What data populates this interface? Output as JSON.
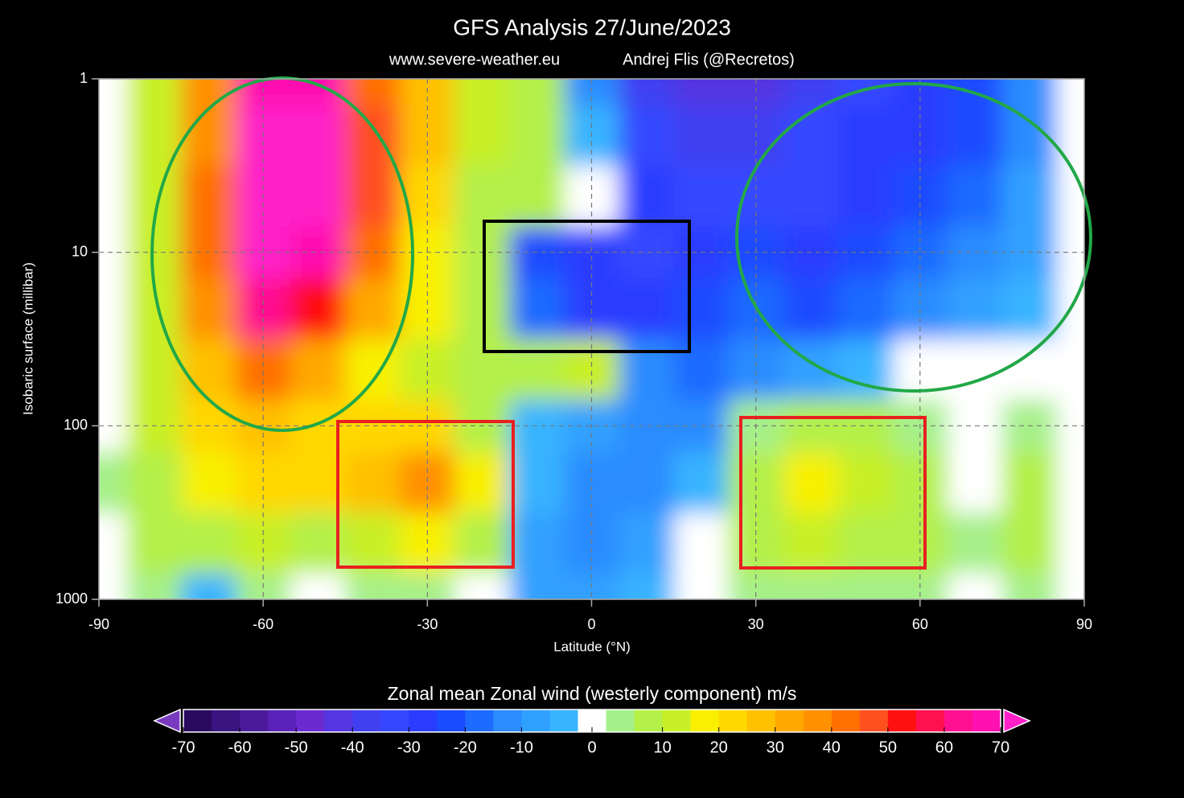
{
  "chart_data": {
    "type": "contour",
    "title": "GFS Analysis  27/June/2023",
    "subtitle": "www.severe-weather.eu",
    "credit": "Andrej Flis (@Recretos)",
    "x_label": "Latitude (°N)",
    "y_label": "Isobaric surface (millibar)",
    "x": [
      -90,
      -80,
      -70,
      -60,
      -50,
      -40,
      -30,
      -20,
      -10,
      0,
      10,
      20,
      30,
      40,
      50,
      60,
      70,
      80,
      90
    ],
    "y": [
      1,
      2,
      5,
      10,
      20,
      50,
      100,
      200,
      500,
      1000
    ],
    "z": [
      [
        0,
        15,
        40,
        70,
        70,
        45,
        30,
        15,
        10,
        -10,
        -35,
        -40,
        -40,
        -35,
        -30,
        -25,
        -20,
        -10,
        0
      ],
      [
        0,
        15,
        40,
        75,
        75,
        50,
        30,
        15,
        8,
        -2,
        -30,
        -35,
        -35,
        -30,
        -25,
        -25,
        -20,
        -10,
        0
      ],
      [
        0,
        15,
        45,
        80,
        75,
        50,
        25,
        10,
        10,
        0,
        -25,
        -30,
        -30,
        -30,
        -25,
        -20,
        -15,
        -5,
        0
      ],
      [
        0,
        15,
        45,
        75,
        70,
        45,
        20,
        10,
        -20,
        -28,
        -30,
        -25,
        -20,
        -25,
        -20,
        -15,
        -10,
        -5,
        0
      ],
      [
        0,
        15,
        40,
        65,
        55,
        35,
        18,
        10,
        -15,
        -25,
        -25,
        -20,
        -15,
        -20,
        -15,
        -10,
        -5,
        -3,
        0
      ],
      [
        2,
        15,
        30,
        45,
        35,
        20,
        15,
        8,
        10,
        15,
        -10,
        -15,
        -10,
        -5,
        -3,
        0,
        0,
        0,
        0
      ],
      [
        0,
        12,
        25,
        30,
        25,
        25,
        25,
        10,
        -2,
        -8,
        -12,
        -12,
        5,
        10,
        8,
        5,
        0,
        5,
        0
      ],
      [
        5,
        10,
        18,
        25,
        25,
        30,
        40,
        20,
        -2,
        -12,
        -10,
        -2,
        10,
        20,
        15,
        8,
        2,
        8,
        0
      ],
      [
        2,
        8,
        10,
        15,
        10,
        15,
        20,
        8,
        -5,
        -10,
        -8,
        0,
        8,
        12,
        10,
        8,
        3,
        10,
        0
      ],
      [
        0,
        3,
        -3,
        5,
        2,
        5,
        5,
        2,
        -5,
        -8,
        -3,
        2,
        5,
        5,
        5,
        3,
        2,
        3,
        0
      ]
    ],
    "xlim": [
      -90,
      90
    ],
    "ylim": [
      1000,
      1
    ],
    "y_log": true,
    "xticks": [
      -90,
      -60,
      -30,
      0,
      30,
      60,
      90
    ],
    "yticks": [
      1,
      10,
      100,
      1000
    ],
    "grid": true,
    "colorbar": {
      "title": "Zonal mean Zonal wind (westerly component) m/s",
      "levels": [
        -70,
        -65,
        -60,
        -55,
        -50,
        -45,
        -40,
        -35,
        -30,
        -25,
        -20,
        -15,
        -10,
        -5,
        -2,
        2,
        5,
        10,
        15,
        20,
        25,
        30,
        35,
        40,
        45,
        50,
        55,
        60,
        65,
        70
      ],
      "colors": [
        "#2a0a5e",
        "#3a1480",
        "#4a1a9a",
        "#5a22b8",
        "#6a2ad0",
        "#5535e0",
        "#4040f0",
        "#3548ff",
        "#2a3cff",
        "#1a4cff",
        "#1e6bff",
        "#2a8cff",
        "#30a0ff",
        "#38b4ff",
        "#ffffff",
        "#a6f08a",
        "#b4f048",
        "#c8f028",
        "#f8f000",
        "#ffd800",
        "#ffc000",
        "#ffa800",
        "#ff9000",
        "#ff7000",
        "#ff5020",
        "#ff1010",
        "#ff1050",
        "#ff1090",
        "#ff10b0"
      ],
      "under_color": "#7a3ac0",
      "over_color": "#ff20c8",
      "ticks": [
        -70,
        -60,
        -50,
        -40,
        -30,
        -20,
        -10,
        0,
        10,
        20,
        30,
        40,
        50,
        60,
        70
      ]
    }
  }
}
